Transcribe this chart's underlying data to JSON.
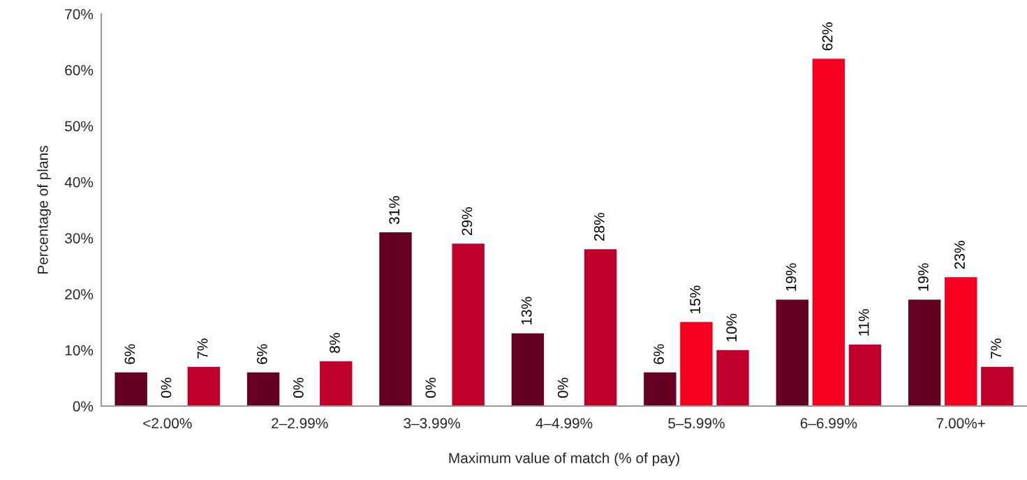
{
  "chart_data": {
    "type": "bar",
    "xlabel": "Maximum value of match (% of pay)",
    "ylabel": "Percentage of plans",
    "categories": [
      "<2.00%",
      "2–2.99%",
      "3–3.99%",
      "4–4.99%",
      "5–5.99%",
      "6–6.99%",
      "7.00%+"
    ],
    "series": [
      {
        "color": "#660022",
        "values": [
          6,
          6,
          31,
          13,
          6,
          19,
          19
        ],
        "value_labels": [
          "6%",
          "6%",
          "31%",
          "13%",
          "6%",
          "19%",
          "19%"
        ]
      },
      {
        "color": "#f5001e",
        "values": [
          0,
          0,
          0,
          0,
          15,
          62,
          23
        ],
        "value_labels": [
          "0%",
          "0%",
          "0%",
          "0%",
          "15%",
          "62%",
          "23%"
        ]
      },
      {
        "color": "#c0002a",
        "values": [
          7,
          8,
          29,
          28,
          10,
          11,
          7
        ],
        "value_labels": [
          "7%",
          "8%",
          "29%",
          "28%",
          "10%",
          "11%",
          "7%"
        ]
      }
    ],
    "ylim": [
      0,
      70
    ],
    "yticks": [
      {
        "value": 0,
        "label": "0%"
      },
      {
        "value": 10,
        "label": "10%"
      },
      {
        "value": 20,
        "label": "20%"
      },
      {
        "value": 30,
        "label": "30%"
      },
      {
        "value": 40,
        "label": "40%"
      },
      {
        "value": 50,
        "label": "50%"
      },
      {
        "value": 60,
        "label": "60%"
      },
      {
        "value": 70,
        "label": "70%"
      }
    ],
    "grid": false,
    "legend": false
  }
}
